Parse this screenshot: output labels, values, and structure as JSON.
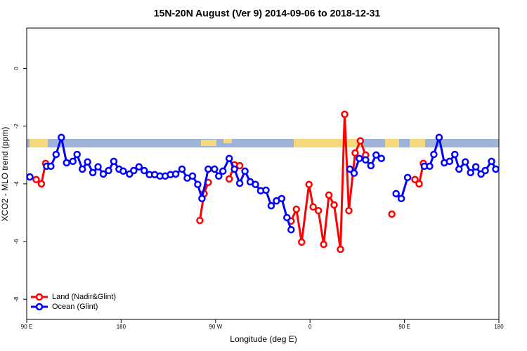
{
  "chart_data": {
    "type": "line",
    "title": "15N-20N August (Ver 9)   2014-09-06 to 2018-12-31",
    "x_label": "Longitude (deg E)",
    "y_label": "XCO2 - MLO trend (ppm)",
    "xlim": [
      90,
      540
    ],
    "ylim": [
      -8.7,
      1.4
    ],
    "xticks": [
      {
        "value": 90,
        "label": "90 E"
      },
      {
        "value": 180,
        "label": "180"
      },
      {
        "value": 270,
        "label": "90 W"
      },
      {
        "value": 360,
        "label": "0"
      },
      {
        "value": 450,
        "label": "90 E"
      },
      {
        "value": 540,
        "label": "180"
      }
    ],
    "yticks": [
      0,
      -2,
      -4,
      -6,
      -8
    ],
    "legend": "bottom left",
    "series": [
      {
        "name": "Land (Nadir&Glint)",
        "color": "#ff0000",
        "x": [
          99,
          104,
          108,
          null,
          255,
          259,
          263,
          null,
          283,
          288,
          293,
          null,
          342,
          347,
          352,
          359,
          363,
          368,
          373,
          378,
          383,
          389,
          393,
          397,
          403,
          408,
          413,
          null,
          438,
          null,
          460,
          464,
          468
        ],
        "values": [
          -3.85,
          -4.0,
          -3.29,
          null,
          -5.27,
          -4.34,
          -3.95,
          null,
          -3.83,
          -3.34,
          -3.37,
          null,
          -5.29,
          -4.88,
          -6.02,
          -4.02,
          -4.8,
          -4.93,
          -6.1,
          -4.39,
          -4.73,
          -6.27,
          -1.59,
          -4.93,
          -2.93,
          -2.51,
          -3.0,
          null,
          -5.05,
          null,
          -3.85,
          -4.0,
          -3.29
        ]
      },
      {
        "name": "Ocean (Glint)",
        "color": "#0000ff",
        "x": [
          93,
          null,
          109,
          113,
          118,
          123,
          128,
          134,
          138,
          143,
          148,
          153,
          158,
          163,
          168,
          173,
          178,
          182,
          188,
          192,
          197,
          202,
          207,
          212,
          217,
          222,
          227,
          232,
          238,
          243,
          248,
          253,
          257,
          263,
          269,
          273,
          277,
          283,
          288,
          293,
          298,
          303,
          308,
          313,
          318,
          323,
          328,
          333,
          338,
          342,
          null,
          398,
          402,
          407,
          413,
          418,
          423,
          428,
          null,
          442,
          447,
          453,
          null,
          469,
          474,
          478,
          483,
          488,
          493,
          498,
          502,
          508,
          513,
          518,
          523,
          527,
          533,
          537
        ],
        "values": [
          -3.76,
          null,
          -3.39,
          -3.39,
          -2.98,
          -2.39,
          -3.27,
          -3.22,
          -2.98,
          -3.49,
          -3.24,
          -3.61,
          -3.41,
          -3.66,
          -3.54,
          -3.22,
          -3.49,
          -3.56,
          -3.66,
          -3.54,
          -3.41,
          -3.54,
          -3.68,
          -3.68,
          -3.73,
          -3.73,
          -3.68,
          -3.66,
          -3.49,
          -3.8,
          -3.73,
          -4.02,
          -4.51,
          -3.49,
          -3.49,
          -3.73,
          -3.56,
          -3.12,
          -3.49,
          -3.98,
          -3.56,
          -3.93,
          -4.02,
          -4.24,
          -4.22,
          -4.76,
          -4.59,
          -4.51,
          -5.17,
          -5.59,
          null,
          -3.49,
          -3.63,
          -3.12,
          -3.17,
          -3.37,
          -3.0,
          -3.12,
          null,
          -4.34,
          -4.51,
          -3.78,
          null,
          -3.39,
          -3.39,
          -2.98,
          -2.39,
          -3.27,
          -3.22,
          -2.98,
          -3.49,
          -3.24,
          -3.61,
          -3.41,
          -3.66,
          -3.54,
          -3.22,
          -3.49
        ]
      }
    ]
  }
}
